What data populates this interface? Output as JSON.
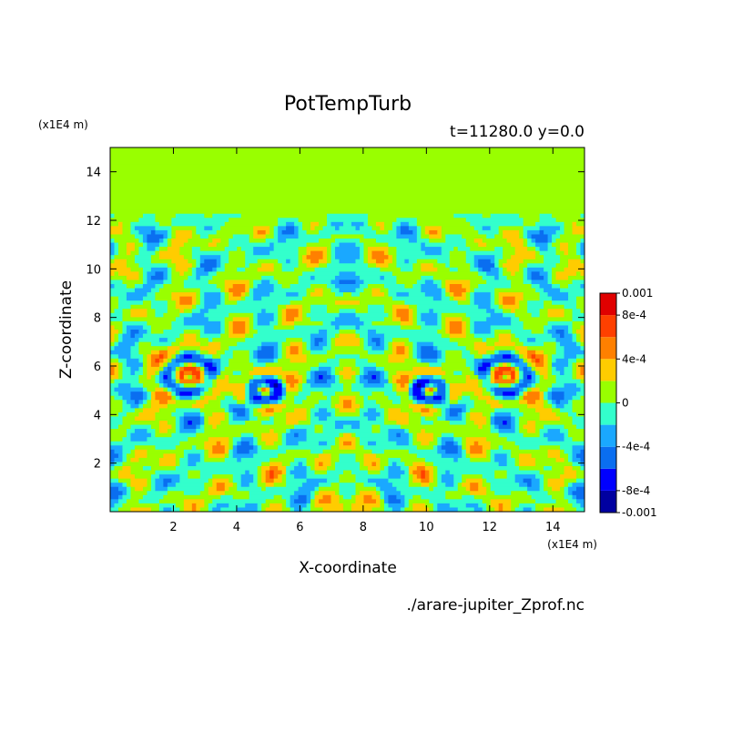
{
  "chart_data": {
    "type": "heatmap",
    "title": "PotTempTurb",
    "subtitle": "t=11280.0 y=0.0",
    "xlabel": "X-coordinate",
    "ylabel": "Z-coordinate",
    "x_unit": "(x1E4 m)",
    "y_unit": "(x1E4 m)",
    "source_file": "./arare-jupiter_Zprof.nc",
    "xlim": [
      0,
      15
    ],
    "ylim": [
      0,
      15
    ],
    "x_ticks": [
      2,
      4,
      6,
      8,
      10,
      12,
      14
    ],
    "y_ticks": [
      2,
      4,
      6,
      8,
      10,
      12,
      14
    ],
    "x_tick_labels": [
      "2",
      "4",
      "6",
      "8",
      "10",
      "12",
      "14"
    ],
    "y_tick_labels": [
      "2",
      "4",
      "6",
      "8",
      "10",
      "12",
      "14"
    ],
    "background_value_above_z": 12.2,
    "colorbar": {
      "levels": [
        -0.001,
        -0.0008,
        -0.0006,
        -0.0004,
        -0.0002,
        0,
        0.0002,
        0.0004,
        0.0006,
        0.0008,
        0.001
      ],
      "colors": [
        "#0000a0",
        "#0000ff",
        "#0a6ef0",
        "#1aa8ff",
        "#33ffcc",
        "#99ff00",
        "#ffcc00",
        "#ff8000",
        "#ff4000",
        "#e00000"
      ],
      "tick_labels": [
        "0.001",
        "8e-4",
        "4e-4",
        "0",
        "-4e-4",
        "-8e-4",
        "-0.001"
      ],
      "tick_values": [
        0.001,
        0.0008,
        0.0004,
        0,
        -0.0004,
        -0.0008,
        -0.001
      ]
    }
  }
}
